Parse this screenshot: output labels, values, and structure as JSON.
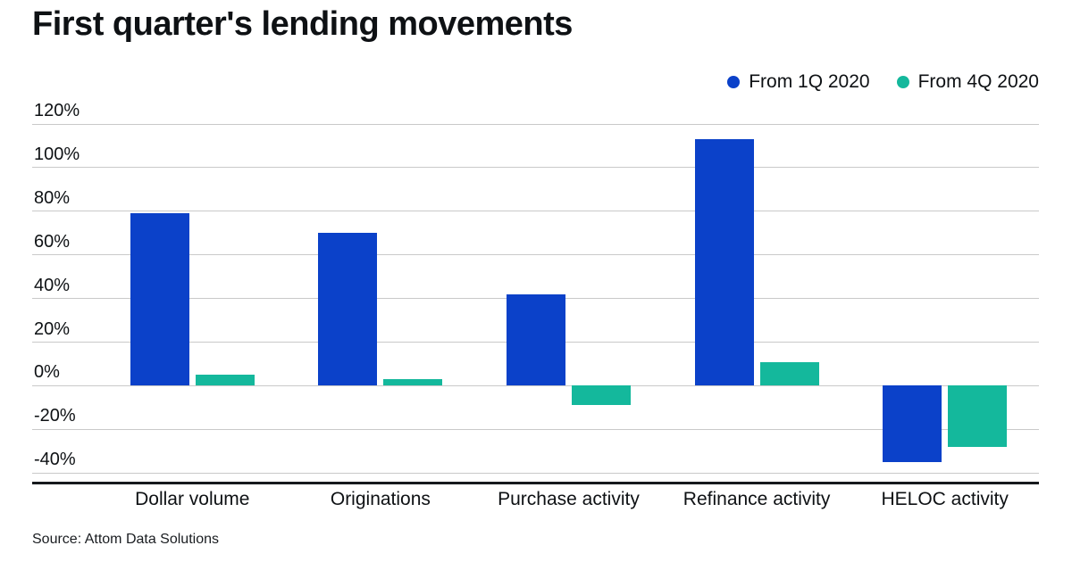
{
  "chart_data": {
    "type": "bar",
    "title": "First quarter's lending movements",
    "source": "Source: Attom Data Solutions",
    "categories": [
      "Dollar volume",
      "Originations",
      "Purchase activity",
      "Refinance activity",
      "HELOC activity"
    ],
    "series": [
      {
        "name": "From 1Q 2020",
        "color": "#0b41c9",
        "values": [
          79,
          70,
          42,
          113,
          -35
        ]
      },
      {
        "name": "From 4Q 2020",
        "color": "#14b89c",
        "values": [
          5,
          3,
          -9,
          11,
          -28
        ]
      }
    ],
    "ylim": [
      -44,
      120
    ],
    "y_ticks": [
      120,
      100,
      80,
      60,
      40,
      20,
      0,
      -20,
      -40
    ],
    "y_tick_suffix": "%",
    "grid": true,
    "legend_position": "top-right",
    "colors": {
      "axis_line": "#16191d",
      "gridline": "#c9c9c9",
      "text": "#0e1114",
      "background": "#ffffff"
    }
  }
}
